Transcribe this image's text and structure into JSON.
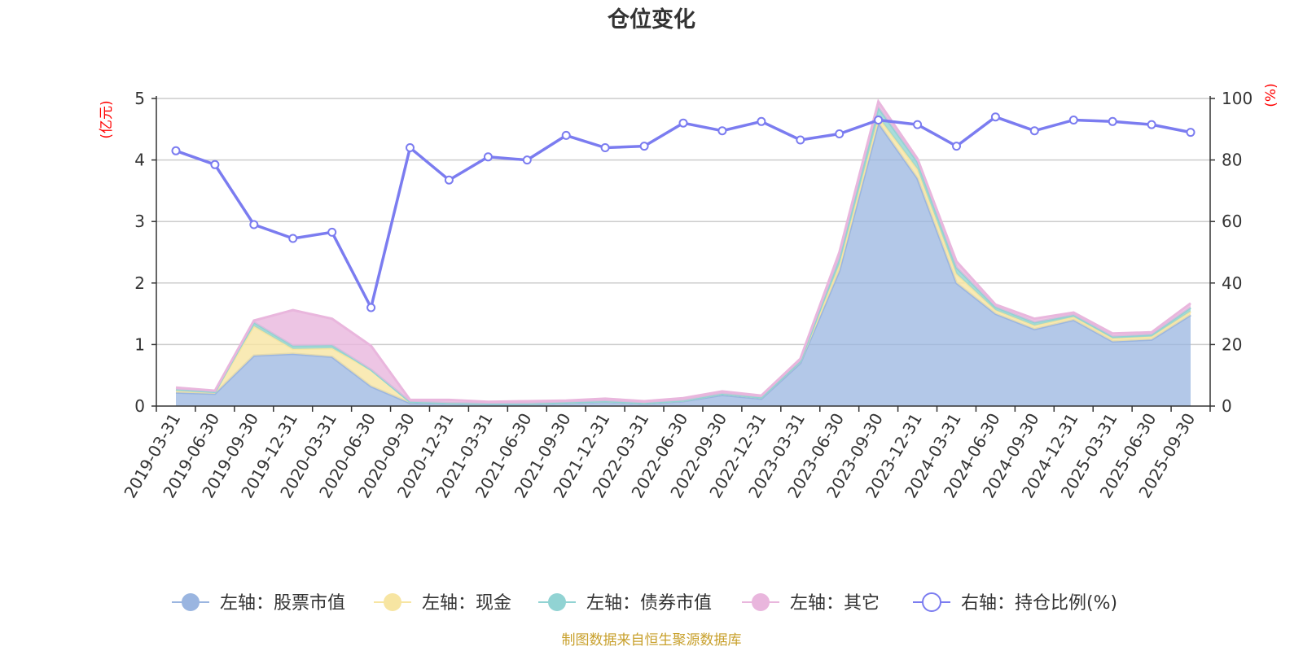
{
  "chart_data": {
    "type": "area",
    "title": "仓位变化",
    "left_axis": {
      "unit_label": "(亿元)",
      "ylim": [
        0,
        5
      ],
      "ticks": [
        "0",
        "1",
        "2",
        "3",
        "4",
        "5"
      ]
    },
    "right_axis": {
      "unit_label": "(%)",
      "ylim": [
        0,
        100
      ],
      "ticks": [
        "0",
        "20",
        "40",
        "60",
        "80",
        "100"
      ]
    },
    "categories": [
      "2019-03-31",
      "2019-06-30",
      "2019-09-30",
      "2019-12-31",
      "2020-03-31",
      "2020-06-30",
      "2020-09-30",
      "2020-12-31",
      "2021-03-31",
      "2021-06-30",
      "2021-09-30",
      "2021-12-31",
      "2022-03-31",
      "2022-06-30",
      "2022-09-30",
      "2022-12-31",
      "2023-03-31",
      "2023-06-30",
      "2023-09-30",
      "2023-12-31",
      "2024-03-31",
      "2024-06-30",
      "2024-09-30",
      "2024-12-31",
      "2025-03-31",
      "2025-06-30",
      "2025-09-30"
    ],
    "series": [
      {
        "name": "左轴：股票市值",
        "axis": "left",
        "kind": "stacked-area",
        "color": "#9ab5e0",
        "values": [
          0.22,
          0.2,
          0.82,
          0.85,
          0.8,
          0.32,
          0.05,
          0.04,
          0.03,
          0.03,
          0.05,
          0.07,
          0.04,
          0.08,
          0.18,
          0.12,
          0.7,
          2.2,
          4.6,
          3.7,
          2.0,
          1.5,
          1.25,
          1.4,
          1.05,
          1.08,
          1.48
        ]
      },
      {
        "name": "左轴：现金",
        "axis": "left",
        "kind": "stacked-area",
        "color": "#f7e5a2",
        "values": [
          0.05,
          0.03,
          0.48,
          0.08,
          0.14,
          0.27,
          0.02,
          0.01,
          0.01,
          0.01,
          0.01,
          0.01,
          0.01,
          0.01,
          0.02,
          0.02,
          0.03,
          0.1,
          0.1,
          0.15,
          0.15,
          0.06,
          0.06,
          0.05,
          0.05,
          0.05,
          0.06
        ]
      },
      {
        "name": "左轴：债券市值",
        "axis": "left",
        "kind": "stacked-area",
        "color": "#91d3d3",
        "values": [
          0.0,
          0.0,
          0.06,
          0.05,
          0.05,
          0.0,
          0.0,
          0.0,
          0.0,
          0.0,
          0.0,
          0.0,
          0.0,
          0.0,
          0.0,
          0.0,
          0.0,
          0.1,
          0.15,
          0.12,
          0.1,
          0.05,
          0.05,
          0.03,
          0.03,
          0.03,
          0.06
        ]
      },
      {
        "name": "左轴：其它",
        "axis": "left",
        "kind": "stacked-area",
        "color": "#e9b6dd",
        "values": [
          0.03,
          0.02,
          0.03,
          0.58,
          0.43,
          0.39,
          0.03,
          0.05,
          0.03,
          0.04,
          0.03,
          0.04,
          0.03,
          0.04,
          0.04,
          0.03,
          0.04,
          0.1,
          0.1,
          0.05,
          0.1,
          0.04,
          0.06,
          0.04,
          0.05,
          0.04,
          0.07
        ]
      },
      {
        "name": "右轴：持仓比例(%)",
        "axis": "right",
        "kind": "line",
        "color": "#7b7cf0",
        "values": [
          83,
          78.5,
          59,
          54.5,
          56.5,
          32,
          84,
          73.5,
          81,
          80,
          88,
          84,
          84.5,
          92,
          89.5,
          92.5,
          86.5,
          88.5,
          93,
          91.5,
          84.5,
          94,
          89.5,
          93,
          92.5,
          91.5,
          89
        ]
      }
    ]
  },
  "source_note": "制图数据来自恒生聚源数据库"
}
